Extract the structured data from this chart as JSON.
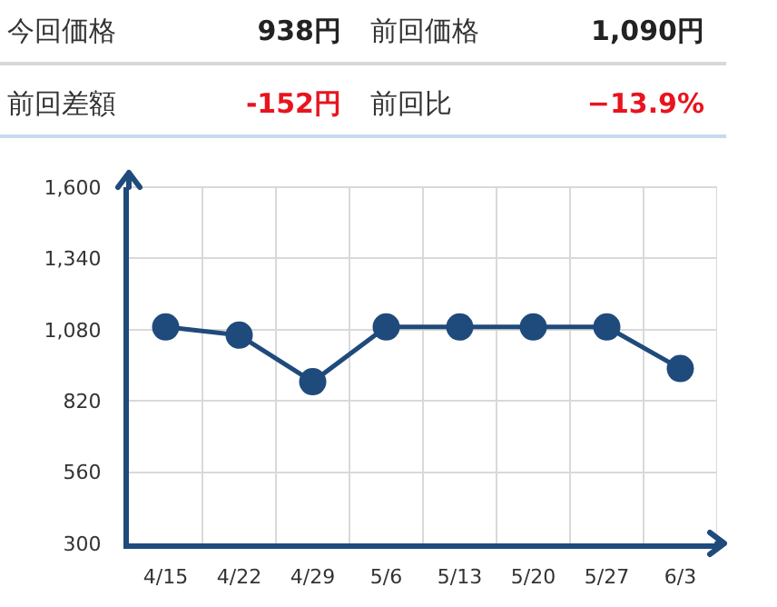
{
  "chart_data": {
    "type": "line",
    "categories": [
      "4/15",
      "4/22",
      "4/29",
      "5/6",
      "5/13",
      "5/20",
      "5/27",
      "6/3"
    ],
    "values": [
      1090,
      1060,
      890,
      1090,
      1090,
      1090,
      1090,
      938
    ],
    "color": "#1f4a7c",
    "marker": "circle",
    "line_style": "solid",
    "grid": true,
    "ylim": [
      300,
      1600
    ],
    "yticks": [
      300,
      560,
      820,
      {
        "value": 1080,
        "label": "1,080"
      },
      {
        "value": 1340,
        "label": "1,340"
      },
      {
        "value": 1600,
        "label": "1,600"
      }
    ],
    "annotations": [
      "今回価格",
      "938円",
      "前回価格",
      "1,090円",
      "前回差額",
      "-152円",
      "前回比",
      "−13.9%"
    ]
  }
}
